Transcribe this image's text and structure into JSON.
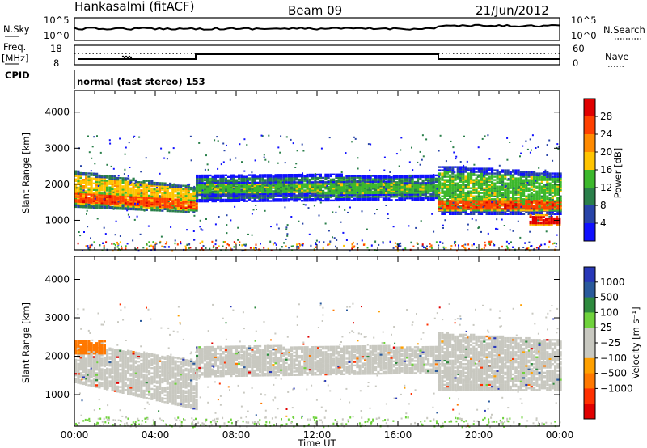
{
  "header": {
    "station": "Hankasalmi (fitACF)",
    "beam": "Beam 09",
    "date": "21/Jun/2012"
  },
  "params": {
    "nsky_label": "N.Sky",
    "nsky_ticks": [
      "10^5",
      "10^0"
    ],
    "nsearch_label": "N.Search",
    "nsearch_ticks": [
      "10^5",
      "10^0"
    ],
    "freq_label": "Freq.",
    "freq_unit": "[MHz]",
    "freq_ticks": [
      "18",
      "8"
    ],
    "nave_label": "Nave",
    "nave_ticks": [
      "60",
      "0"
    ],
    "cpid_label": "CPID",
    "cpid_value": "normal (fast stereo) 153"
  },
  "power_scale": {
    "label": "Power [dB]",
    "ticks": [
      "28",
      "24",
      "20",
      "16",
      "12",
      "8",
      "4"
    ],
    "colors": [
      "#e00000",
      "#ff4000",
      "#ff8a00",
      "#ffc400",
      "#3cb82c",
      "#2a7f4a",
      "#2844a8",
      "#1010ff"
    ]
  },
  "velocity_scale": {
    "label": "Velocity [m s⁻¹]",
    "ticks": [
      "1000",
      "500",
      "100",
      "25",
      "−25",
      "−100",
      "−500",
      "−1000"
    ],
    "colors": [
      "#2838b8",
      "#2a5a9c",
      "#2e8a3e",
      "#6fd23c",
      "#c8c8c0",
      "#c8c8c0",
      "#ffa000",
      "#ff7800",
      "#ff3000",
      "#e00000"
    ]
  },
  "chart_data": [
    {
      "type": "heatmap",
      "name": "power",
      "ylabel": "Slant Range [km]",
      "yticks": [
        1000,
        2000,
        3000,
        4000
      ],
      "ylim": [
        180,
        4600
      ],
      "xlim": [
        0,
        24
      ],
      "x_tick_labels": [
        "00:00",
        "04:00",
        "08:00",
        "12:00",
        "16:00",
        "20:00",
        "00:00"
      ],
      "bands": [
        {
          "t0": 0.0,
          "t1": 6.0,
          "r0": 1350,
          "r1": 2350,
          "r0e": 1200,
          "r1e": 1900,
          "level": 3
        },
        {
          "t0": 0.0,
          "t1": 6.0,
          "r0": 1450,
          "r1": 1800,
          "r0e": 1250,
          "r1e": 1550,
          "level": 1
        },
        {
          "t0": 6.0,
          "t1": 18.0,
          "r0": 1500,
          "r1": 2250,
          "r0e": 1550,
          "r1e": 2250,
          "level": 5
        },
        {
          "t0": 6.0,
          "t1": 18.0,
          "r0": 1650,
          "r1": 2050,
          "r0e": 1700,
          "r1e": 2050,
          "level": 4
        },
        {
          "t0": 18.0,
          "t1": 24.0,
          "r0": 1150,
          "r1": 2500,
          "r0e": 1150,
          "r1e": 2300,
          "level": 4
        },
        {
          "t0": 18.0,
          "t1": 24.0,
          "r0": 1250,
          "r1": 1600,
          "r0e": 1250,
          "r1e": 1550,
          "level": 1
        },
        {
          "t0": 22.5,
          "t1": 24.0,
          "r0": 850,
          "r1": 1150,
          "r0e": 850,
          "r1e": 1100,
          "level": 0
        }
      ]
    },
    {
      "type": "heatmap",
      "name": "velocity",
      "ylabel": "Slant Range [km]",
      "xlabel": "Time UT",
      "yticks": [
        1000,
        2000,
        3000,
        4000
      ],
      "ylim": [
        180,
        4600
      ],
      "xlim": [
        0,
        24
      ],
      "x_tick_labels": [
        "00:00",
        "04:00",
        "08:00",
        "12:00",
        "16:00",
        "20:00",
        "00:00"
      ],
      "bands": [
        {
          "t0": 0.0,
          "t1": 6.0,
          "r0": 1300,
          "r1": 2300,
          "r0e": 600,
          "r1e": 1900,
          "level": 4
        },
        {
          "t0": 0.0,
          "t1": 1.5,
          "r0": 2050,
          "r1": 2400,
          "r0e": 2050,
          "r1e": 2400,
          "level": 7
        },
        {
          "t0": 6.0,
          "t1": 18.0,
          "r0": 1450,
          "r1": 2250,
          "r0e": 1550,
          "r1e": 2250,
          "level": 4
        },
        {
          "t0": 18.0,
          "t1": 24.0,
          "r0": 1100,
          "r1": 2600,
          "r0e": 1100,
          "r1e": 2400,
          "level": 4
        }
      ]
    }
  ]
}
